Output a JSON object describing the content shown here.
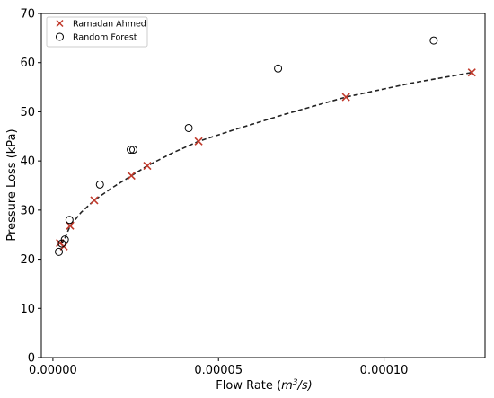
{
  "chart_data": {
    "type": "scatter",
    "xlabel_main": "Flow Rate (",
    "xlabel_m": "m",
    "xlabel_exp": "3",
    "xlabel_rest": "/s)",
    "ylabel": "Pressure Loss (kPa)",
    "xlim": [
      -3.5e-06,
      0.0001305
    ],
    "ylim": [
      0,
      70
    ],
    "xticks": [
      0,
      5e-05,
      0.0001
    ],
    "xtick_labels": [
      "0.00000",
      "0.00005",
      "0.00010"
    ],
    "yticks": [
      0,
      10,
      20,
      30,
      40,
      50,
      60,
      70
    ],
    "ytick_labels": [
      "0",
      "10",
      "20",
      "30",
      "40",
      "50",
      "60",
      "70"
    ],
    "grid": false,
    "legend_position": "top-left",
    "series": [
      {
        "name": "Ramadan Ahmed",
        "marker": "x",
        "color": "#c0392b",
        "points": [
          {
            "x": 2.1e-06,
            "y": 23.3
          },
          {
            "x": 3.3e-06,
            "y": 22.6
          },
          {
            "x": 5.2e-06,
            "y": 26.8
          },
          {
            "x": 1.25e-05,
            "y": 32.0
          },
          {
            "x": 2.37e-05,
            "y": 37.0
          },
          {
            "x": 2.85e-05,
            "y": 39.0
          },
          {
            "x": 4.4e-05,
            "y": 44.0
          },
          {
            "x": 8.85e-05,
            "y": 53.0
          },
          {
            "x": 0.0001265,
            "y": 58.0
          }
        ]
      },
      {
        "name": "Random Forest",
        "marker": "o",
        "color": "#000000",
        "points": [
          {
            "x": 1.8e-06,
            "y": 21.5
          },
          {
            "x": 2.7e-06,
            "y": 23.2
          },
          {
            "x": 3.6e-06,
            "y": 24.0
          },
          {
            "x": 5e-06,
            "y": 28.0
          },
          {
            "x": 1.42e-05,
            "y": 35.2
          },
          {
            "x": 2.35e-05,
            "y": 42.3
          },
          {
            "x": 2.43e-05,
            "y": 42.3
          },
          {
            "x": 4.1e-05,
            "y": 46.7
          },
          {
            "x": 6.8e-05,
            "y": 58.8
          },
          {
            "x": 0.000115,
            "y": 64.5
          }
        ]
      }
    ],
    "fit_line": {
      "style": "dashed",
      "color": "#222222",
      "points": [
        {
          "x": 2.1e-06,
          "y": 23.3
        },
        {
          "x": 3.3e-06,
          "y": 23.8
        },
        {
          "x": 5.2e-06,
          "y": 26.8
        },
        {
          "x": 8.5e-06,
          "y": 29.5
        },
        {
          "x": 1.25e-05,
          "y": 32.0
        },
        {
          "x": 1.8e-05,
          "y": 34.6
        },
        {
          "x": 2.37e-05,
          "y": 37.0
        },
        {
          "x": 2.85e-05,
          "y": 39.0
        },
        {
          "x": 3.6e-05,
          "y": 41.6
        },
        {
          "x": 4.4e-05,
          "y": 44.0
        },
        {
          "x": 5.5e-05,
          "y": 46.4
        },
        {
          "x": 7e-05,
          "y": 49.5
        },
        {
          "x": 8.85e-05,
          "y": 53.0
        },
        {
          "x": 0.000108,
          "y": 55.8
        },
        {
          "x": 0.0001265,
          "y": 58.0
        }
      ]
    }
  }
}
